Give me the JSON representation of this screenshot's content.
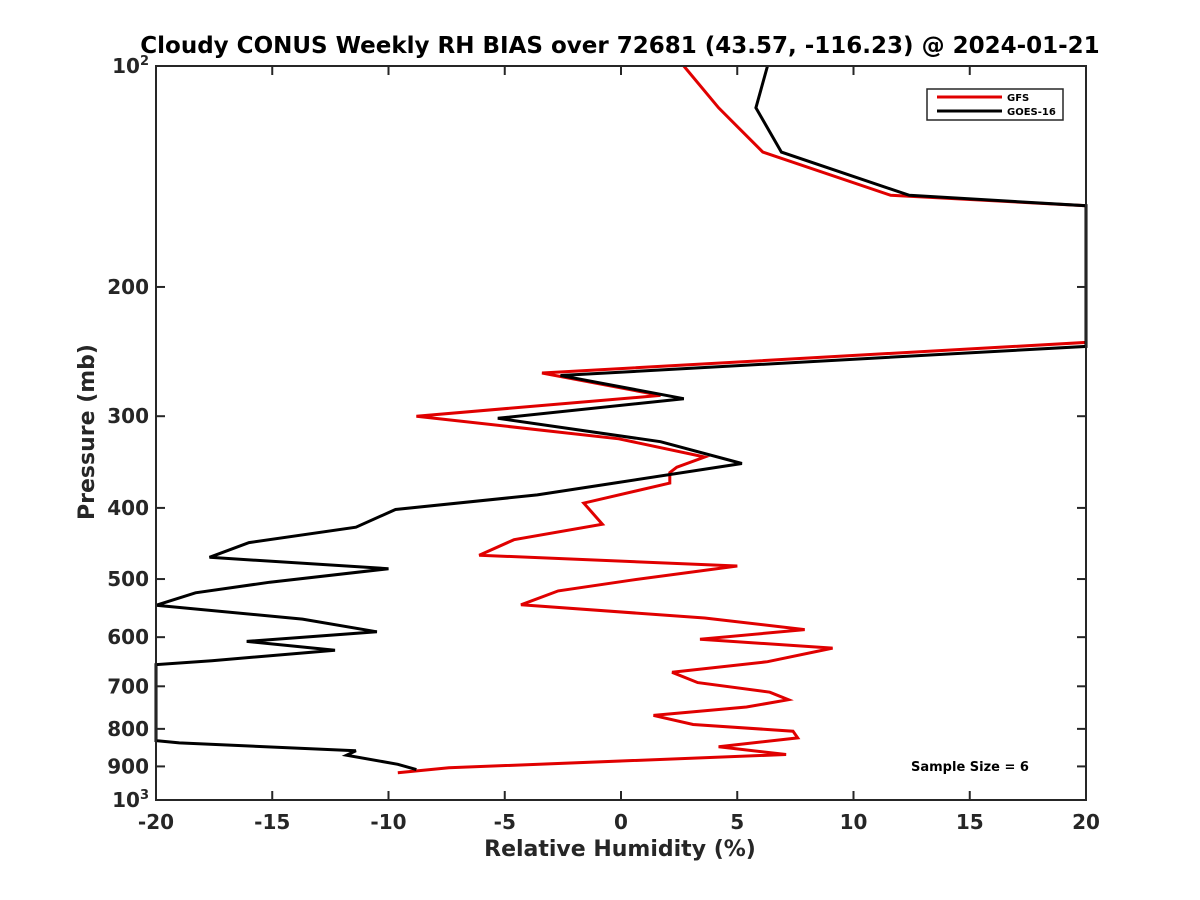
{
  "chart_data": {
    "type": "line",
    "title": "Cloudy CONUS Weekly RH BIAS over 72681 (43.57, -116.23) @ 2024-01-21",
    "xlabel": "Relative Humidity (%)",
    "ylabel": "Pressure (mb)",
    "xlim": [
      -20,
      20
    ],
    "ylim": [
      100,
      1000
    ],
    "y_scale": "log",
    "y_reversed": true,
    "grid": false,
    "legend_position": "top-right",
    "x_ticks": [
      -20,
      -15,
      -10,
      -5,
      0,
      5,
      10,
      15,
      20
    ],
    "x_tick_labels": [
      "-20",
      "-15",
      "-10",
      "-5",
      "0",
      "5",
      "10",
      "15",
      "20"
    ],
    "y_ticks": [
      {
        "value": 100,
        "base": "10",
        "exp": "2"
      },
      {
        "value": 200,
        "label": "200"
      },
      {
        "value": 300,
        "label": "300"
      },
      {
        "value": 400,
        "label": "400"
      },
      {
        "value": 500,
        "label": "500"
      },
      {
        "value": 600,
        "label": "600"
      },
      {
        "value": 700,
        "label": "700"
      },
      {
        "value": 800,
        "label": "800"
      },
      {
        "value": 900,
        "label": "900"
      },
      {
        "value": 1000,
        "base": "10",
        "exp": "3"
      }
    ],
    "annotation": "Sample Size = 6",
    "series": [
      {
        "name": "GFS",
        "color": "#e00000",
        "points": [
          [
            2.7,
            100
          ],
          [
            4.2,
            114
          ],
          [
            6.1,
            131
          ],
          [
            11.6,
            150
          ],
          [
            20,
            155
          ],
          [
            20,
            238
          ],
          [
            -3.4,
            262
          ],
          [
            1.7,
            281
          ],
          [
            -8.8,
            300
          ],
          [
            -0.1,
            322
          ],
          [
            3.6,
            341
          ],
          [
            2.4,
            352
          ],
          [
            2.1,
            358
          ],
          [
            2.1,
            370
          ],
          [
            -1.6,
            394
          ],
          [
            -0.8,
            421
          ],
          [
            -4.6,
            442
          ],
          [
            -6.1,
            464
          ],
          [
            5.0,
            480
          ],
          [
            0.4,
            502
          ],
          [
            -2.7,
            519
          ],
          [
            -4.3,
            542
          ],
          [
            3.6,
            565
          ],
          [
            7.9,
            586
          ],
          [
            3.4,
            604
          ],
          [
            9.1,
            621
          ],
          [
            6.3,
            648
          ],
          [
            2.2,
            670
          ],
          [
            3.3,
            692
          ],
          [
            6.4,
            713
          ],
          [
            7.2,
            730
          ],
          [
            5.4,
            747
          ],
          [
            1.4,
            767
          ],
          [
            3.1,
            789
          ],
          [
            7.4,
            806
          ],
          [
            7.6,
            823
          ],
          [
            4.2,
            846
          ],
          [
            7.1,
            867
          ],
          [
            -7.4,
            904
          ],
          [
            -9.6,
            918
          ]
        ]
      },
      {
        "name": "GOES-16",
        "color": "#000000",
        "points": [
          [
            6.3,
            100
          ],
          [
            5.8,
            114
          ],
          [
            6.9,
            131
          ],
          [
            12.4,
            150
          ],
          [
            20,
            155
          ],
          [
            20,
            241
          ],
          [
            -2.6,
            264
          ],
          [
            2.7,
            284
          ],
          [
            -5.3,
            302
          ],
          [
            1.7,
            325
          ],
          [
            5.2,
            348
          ],
          [
            -0.3,
            370
          ],
          [
            -3.6,
            384
          ],
          [
            -9.7,
            402
          ],
          [
            -11.4,
            425
          ],
          [
            -16.0,
            446
          ],
          [
            -17.7,
            467
          ],
          [
            -10.0,
            484
          ],
          [
            -15.1,
            505
          ],
          [
            -18.3,
            522
          ],
          [
            -20.0,
            543
          ],
          [
            -13.7,
            567
          ],
          [
            -10.5,
            590
          ],
          [
            -16.1,
            608
          ],
          [
            -12.3,
            625
          ],
          [
            -17.6,
            646
          ],
          [
            -20.0,
            654
          ],
          [
            -20.0,
            830
          ],
          [
            -19.0,
            836
          ],
          [
            -11.4,
            857
          ],
          [
            -11.8,
            869
          ],
          [
            -9.6,
            894
          ],
          [
            -8.8,
            909
          ]
        ]
      }
    ]
  }
}
